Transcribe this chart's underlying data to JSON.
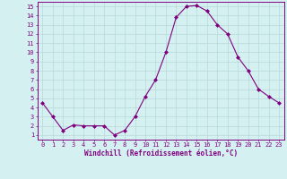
{
  "x": [
    0,
    1,
    2,
    3,
    4,
    5,
    6,
    7,
    8,
    9,
    10,
    11,
    12,
    13,
    14,
    15,
    16,
    17,
    18,
    19,
    20,
    21,
    22,
    23
  ],
  "y": [
    4.5,
    3.0,
    1.5,
    2.1,
    2.0,
    2.0,
    2.0,
    1.0,
    1.5,
    3.0,
    5.2,
    7.0,
    10.0,
    13.8,
    15.0,
    15.1,
    14.5,
    13.0,
    12.0,
    9.5,
    8.0,
    6.0,
    5.2,
    4.5
  ],
  "line_color": "#800080",
  "marker": "D",
  "marker_size": 2.0,
  "bg_color": "#d4f0f0",
  "grid_color": "#b8dada",
  "xlabel": "Windchill (Refroidissement éolien,°C)",
  "xlim": [
    -0.5,
    23.5
  ],
  "ylim": [
    0.5,
    15.5
  ],
  "xticks": [
    0,
    1,
    2,
    3,
    4,
    5,
    6,
    7,
    8,
    9,
    10,
    11,
    12,
    13,
    14,
    15,
    16,
    17,
    18,
    19,
    20,
    21,
    22,
    23
  ],
  "yticks": [
    1,
    2,
    3,
    4,
    5,
    6,
    7,
    8,
    9,
    10,
    11,
    12,
    13,
    14,
    15
  ],
  "tick_color": "#800080",
  "label_color": "#800080",
  "spine_color": "#800080",
  "tick_fontsize": 5.0,
  "xlabel_fontsize": 5.5
}
